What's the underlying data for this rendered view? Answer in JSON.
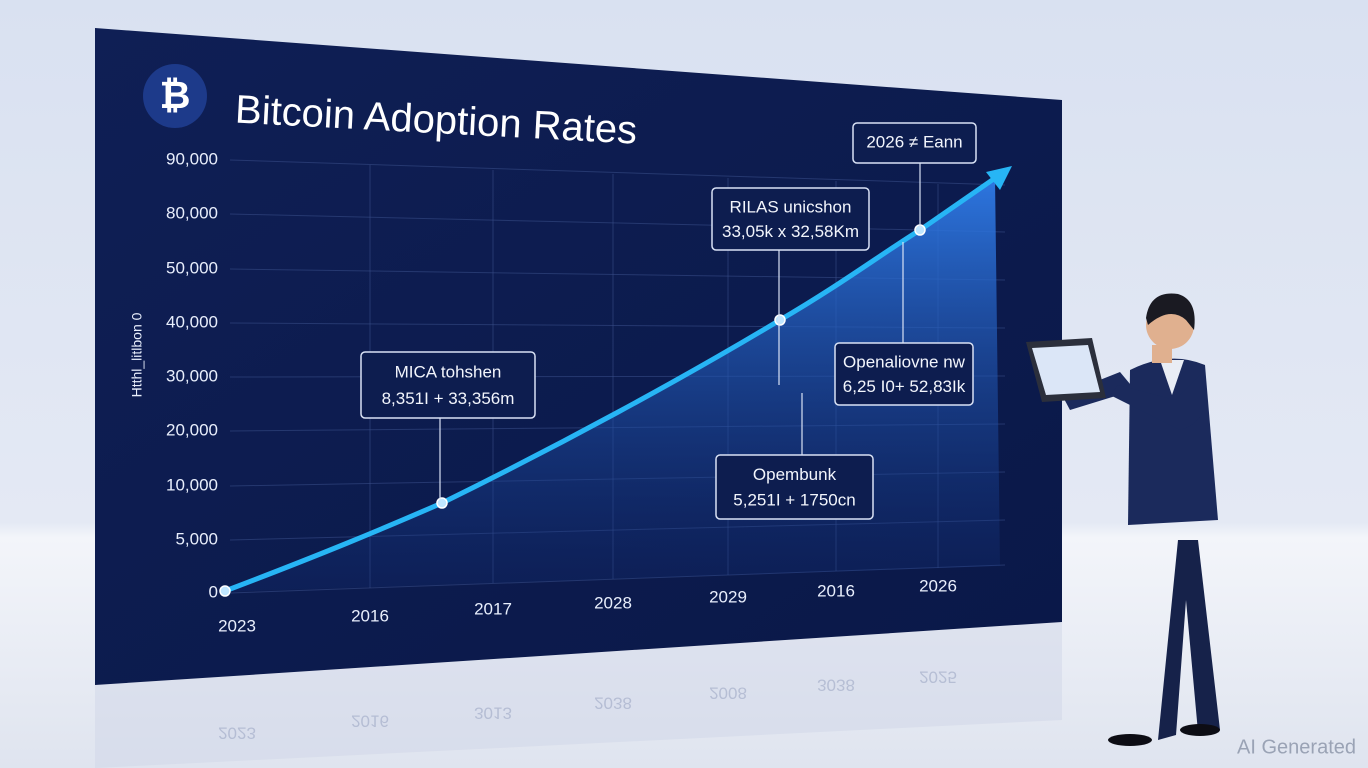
{
  "screen": {
    "logo": "₿",
    "title": "Bitcoin Adoption Rates",
    "y_axis_label": "Htthl_litlbon 0",
    "y_ticks": [
      "90,000",
      "80,000",
      "50,000",
      "40,000",
      "30,000",
      "20,000",
      "10,000",
      "5,000",
      "0"
    ],
    "x_labels": [
      "2023",
      "2016",
      "2017",
      "2028",
      "2029",
      "2016",
      "2026"
    ],
    "callouts": [
      {
        "title": "MICA tohshen",
        "value": "8,351I + 33,356m"
      },
      {
        "title": "RILAS unicshon",
        "value": "33,05k x 32,58Km"
      },
      {
        "title": "2026 ≠ Eann"
      },
      {
        "title": "Openaliovne nw",
        "value": "6,25 I0+ 52,83Ik"
      },
      {
        "title": "Opembunk",
        "value": "5,251I + 1750cn"
      }
    ]
  },
  "reflection_labels": [
    "2023",
    "2016",
    "3013",
    "2038",
    "2008",
    "3038",
    "2025"
  ],
  "watermark": "AI Generated"
}
